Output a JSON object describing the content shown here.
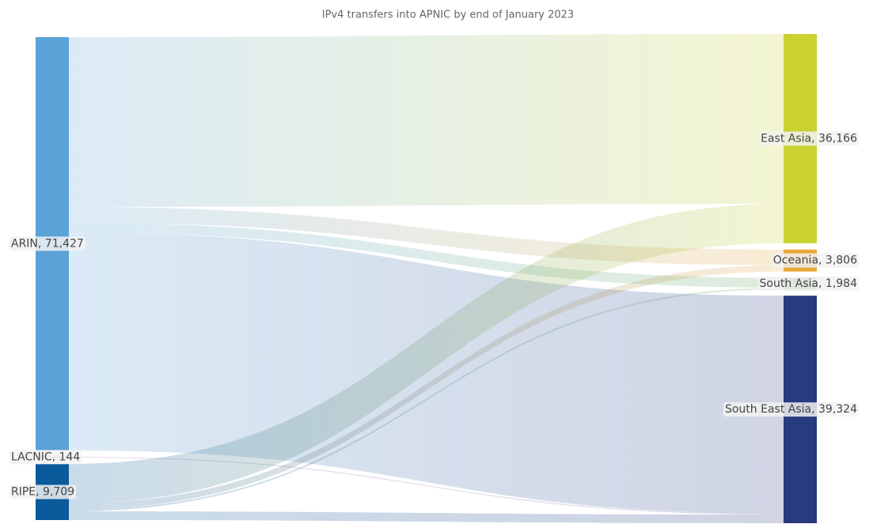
{
  "chart_data": {
    "type": "sankey",
    "title": "IPv4 transfers into APNIC by end of January 2023",
    "nodes": [
      {
        "label": "ARIN, 71,427",
        "value": 71427,
        "color": "#5ba3d6",
        "column": 0
      },
      {
        "label": "LACNIC, 144",
        "value": 144,
        "color": "#7b5fa8",
        "column": 0
      },
      {
        "label": "RIPE, 9,709",
        "value": 9709,
        "color": "#0a5a9c",
        "column": 0
      },
      {
        "label": "East Asia, 36,166",
        "value": 36166,
        "color": "#c9d22f",
        "column": 1
      },
      {
        "label": "Oceania, 3,806",
        "value": 3806,
        "color": "#e8a83a",
        "column": 1
      },
      {
        "label": "South Asia, 1,984",
        "value": 1984,
        "color": "#6aaa64",
        "column": 1
      },
      {
        "label": "South East Asia, 39,324",
        "value": 39324,
        "color": "#283a80",
        "column": 1
      }
    ],
    "links": [
      {
        "source": 0,
        "target": 3,
        "value": 29357
      },
      {
        "source": 0,
        "target": 4,
        "value": 2706
      },
      {
        "source": 0,
        "target": 5,
        "value": 1684
      },
      {
        "source": 0,
        "target": 6,
        "value": 37680
      },
      {
        "source": 1,
        "target": 6,
        "value": 144
      },
      {
        "source": 2,
        "target": 3,
        "value": 6809
      },
      {
        "source": 2,
        "target": 4,
        "value": 1100
      },
      {
        "source": 2,
        "target": 5,
        "value": 300
      },
      {
        "source": 2,
        "target": 6,
        "value": 1500
      }
    ]
  }
}
